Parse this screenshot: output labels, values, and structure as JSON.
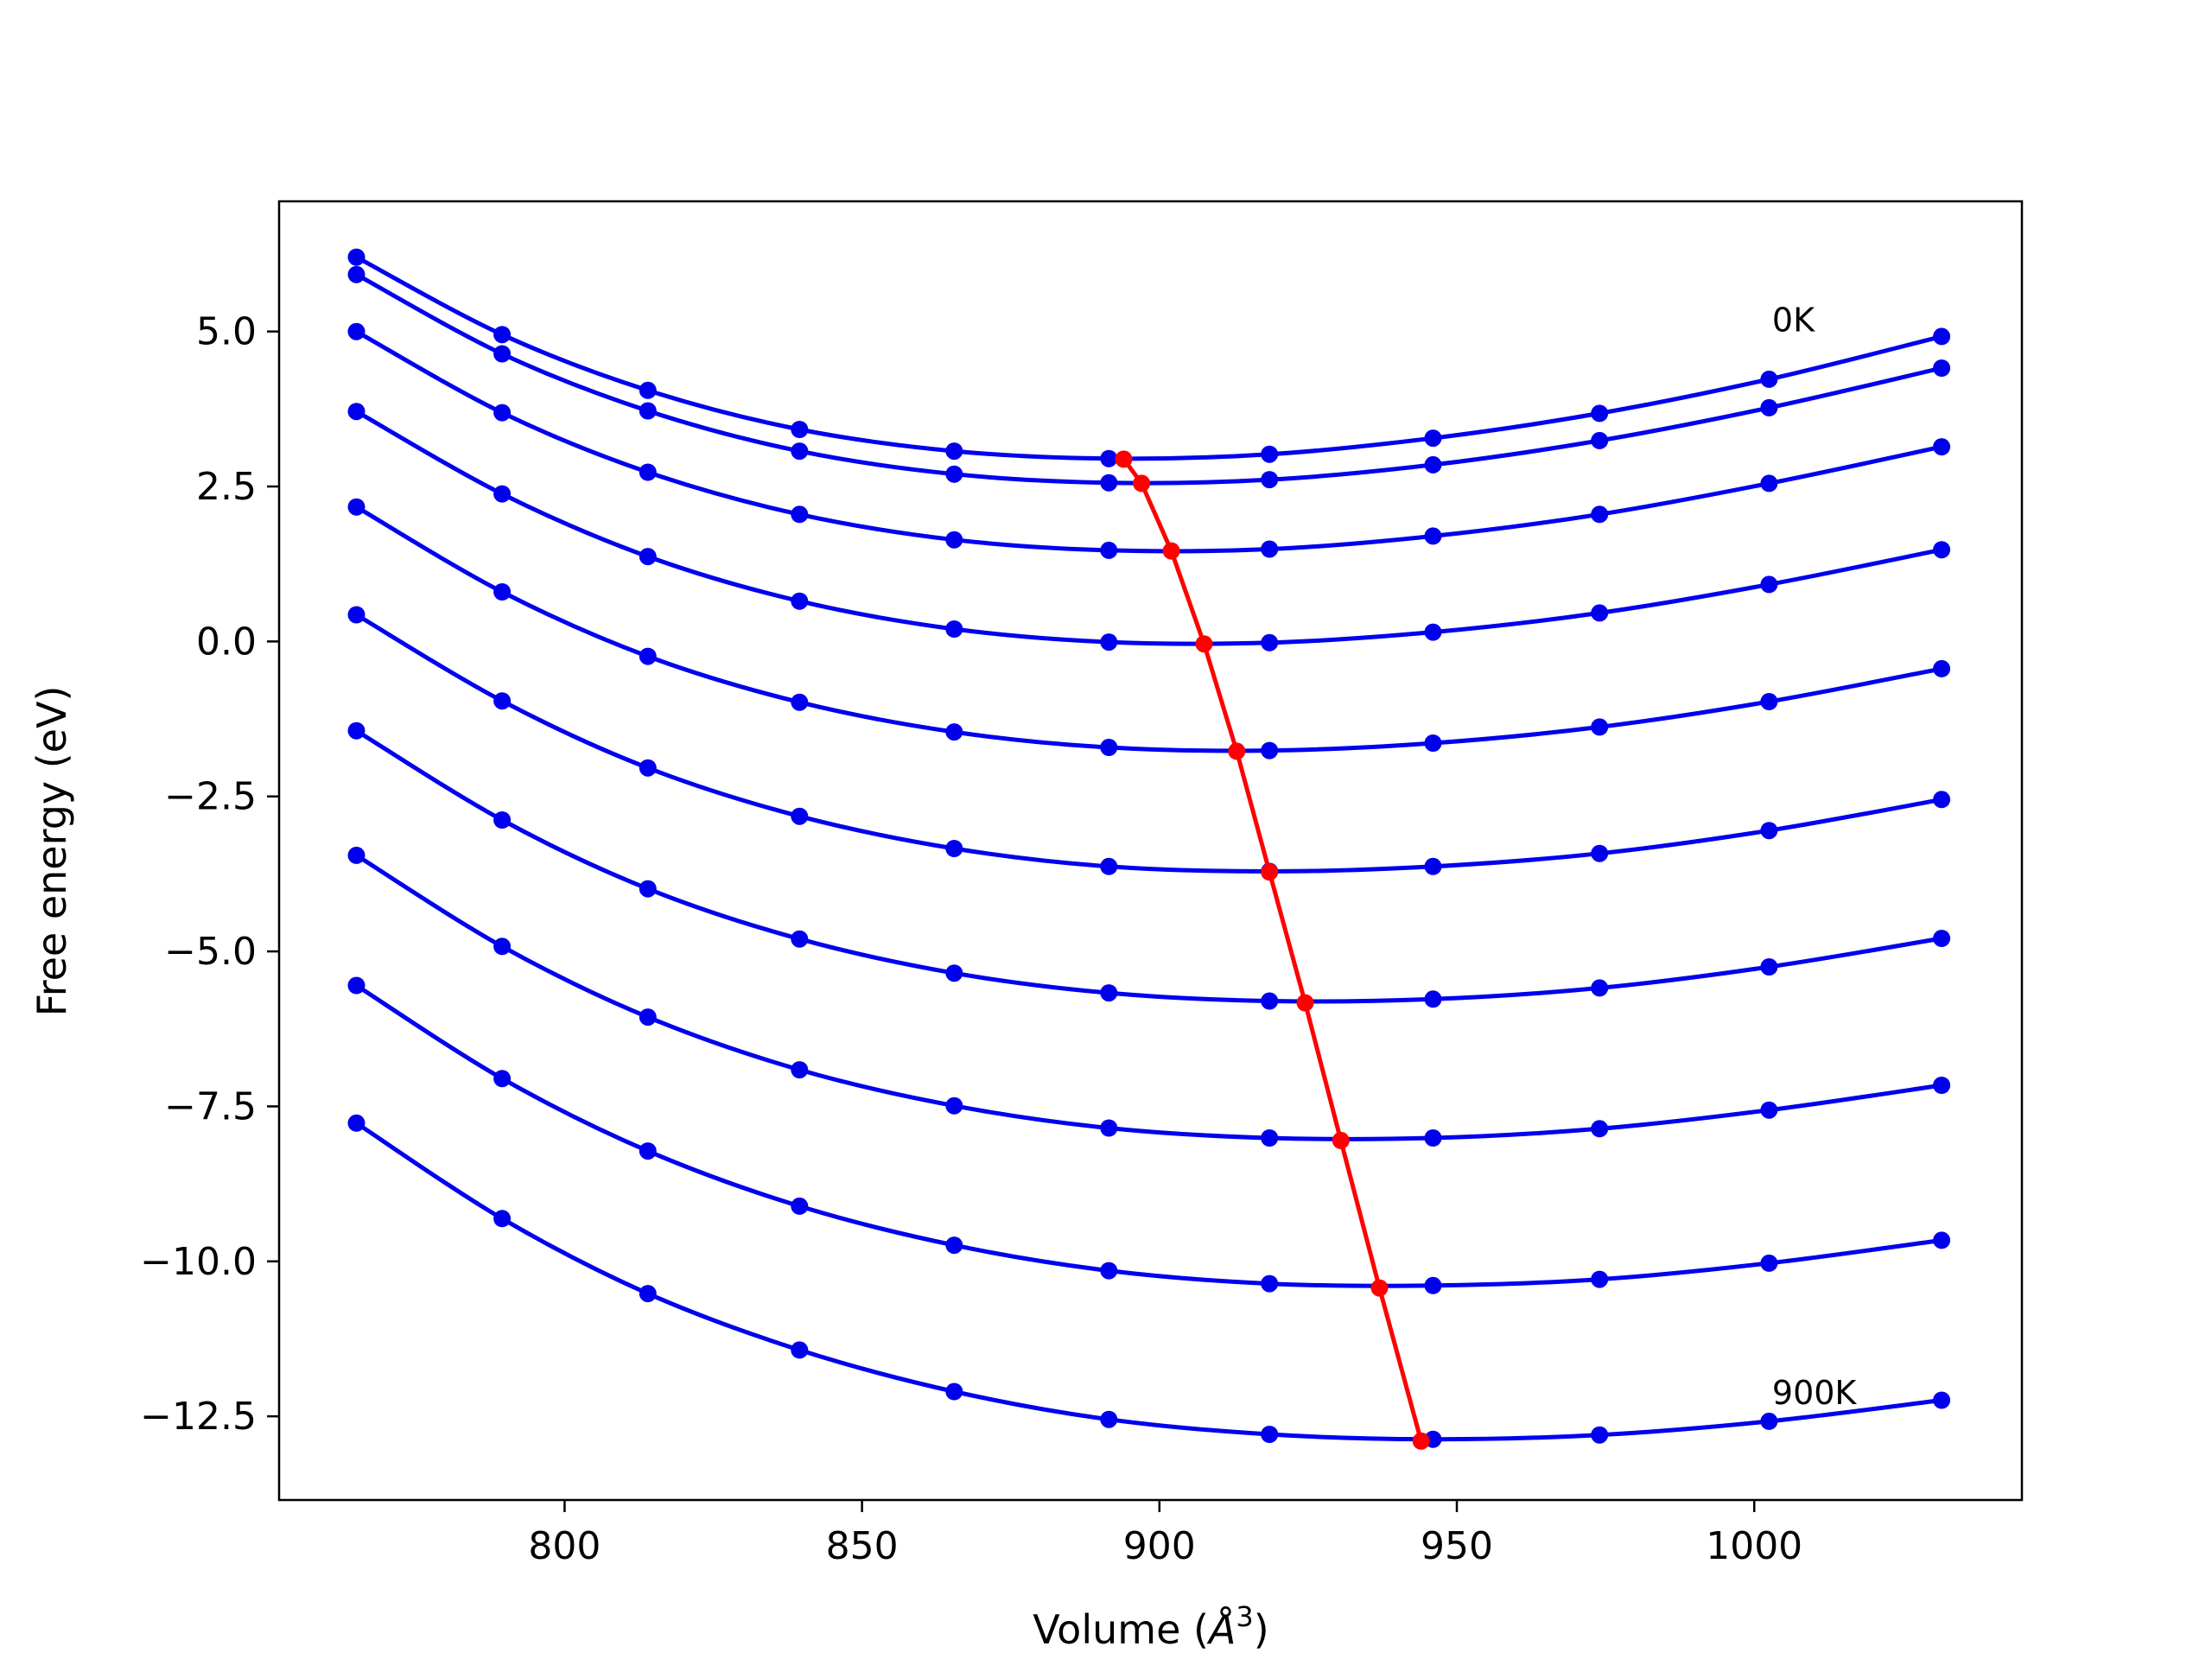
{
  "chart_data": {
    "type": "line",
    "xlabel_prefix": "Volume (",
    "xlabel_unit": "Å",
    "xlabel_exp": "3",
    "xlabel_suffix": ")",
    "ylabel": "Free energy (eV)",
    "xlim": [
      752,
      1045
    ],
    "ylim": [
      -13.85,
      7.1
    ],
    "xticks": [
      800,
      850,
      900,
      950,
      1000
    ],
    "xtick_labels": [
      "800",
      "850",
      "900",
      "950",
      "1000"
    ],
    "yticks": [
      5.0,
      2.5,
      0.0,
      -2.5,
      -5.0,
      -7.5,
      -10.0,
      -12.5
    ],
    "ytick_labels": [
      "5.0",
      "2.5",
      "0.0",
      "−2.5",
      "−5.0",
      "−7.5",
      "−10.0",
      "−12.5"
    ],
    "x": [
      765,
      789.5,
      814,
      839.5,
      865.5,
      891.5,
      918.5,
      946,
      974,
      1002.5,
      1031.5
    ],
    "series": [
      {
        "values": [
          6.2,
          4.95,
          4.05,
          3.42,
          3.07,
          2.95,
          3.02,
          3.28,
          3.68,
          4.23,
          4.92
        ]
      },
      {
        "values": [
          5.92,
          4.64,
          3.72,
          3.07,
          2.7,
          2.56,
          2.61,
          2.85,
          3.24,
          3.77,
          4.41
        ]
      },
      {
        "values": [
          5.0,
          3.69,
          2.73,
          2.05,
          1.64,
          1.47,
          1.49,
          1.7,
          2.05,
          2.55,
          3.14
        ]
      },
      {
        "values": [
          3.71,
          2.38,
          1.37,
          0.65,
          0.2,
          -0.01,
          -0.02,
          0.15,
          0.46,
          0.92,
          1.48
        ]
      },
      {
        "values": [
          2.17,
          0.8,
          -0.24,
          -0.98,
          -1.46,
          -1.71,
          -1.76,
          -1.64,
          -1.38,
          -0.97,
          -0.44
        ]
      },
      {
        "values": [
          0.43,
          -0.96,
          -2.04,
          -2.82,
          -3.34,
          -3.63,
          -3.71,
          -3.63,
          -3.42,
          -3.05,
          -2.55
        ]
      },
      {
        "values": [
          -1.44,
          -2.88,
          -3.99,
          -4.8,
          -5.35,
          -5.67,
          -5.8,
          -5.77,
          -5.59,
          -5.25,
          -4.79
        ]
      },
      {
        "values": [
          -3.45,
          -4.92,
          -6.06,
          -6.91,
          -7.49,
          -7.85,
          -8.01,
          -8.01,
          -7.86,
          -7.56,
          -7.16
        ]
      },
      {
        "values": [
          -5.55,
          -7.05,
          -8.22,
          -9.11,
          -9.74,
          -10.15,
          -10.36,
          -10.39,
          -10.29,
          -10.03,
          -9.66
        ]
      },
      {
        "values": [
          -7.77,
          -9.31,
          -10.52,
          -11.43,
          -12.1,
          -12.55,
          -12.79,
          -12.87,
          -12.8,
          -12.58,
          -12.24
        ]
      }
    ],
    "minima_line": {
      "x": [
        894,
        897,
        902,
        907.5,
        913,
        918.5,
        924.5,
        930.5,
        937,
        944
      ],
      "values": [
        2.94,
        2.55,
        1.46,
        -0.04,
        -1.77,
        -3.72,
        -5.83,
        -8.05,
        -10.43,
        -12.9
      ]
    },
    "annotations": [
      {
        "text": "0K",
        "x": 1003,
        "y": 5.0
      },
      {
        "text": "900K",
        "x": 1003,
        "y": -12.3
      }
    ],
    "colors": {
      "curves": "#0000ee",
      "minima": "#ff0000",
      "axes": "#000000"
    },
    "grid": false,
    "legend": "none"
  }
}
